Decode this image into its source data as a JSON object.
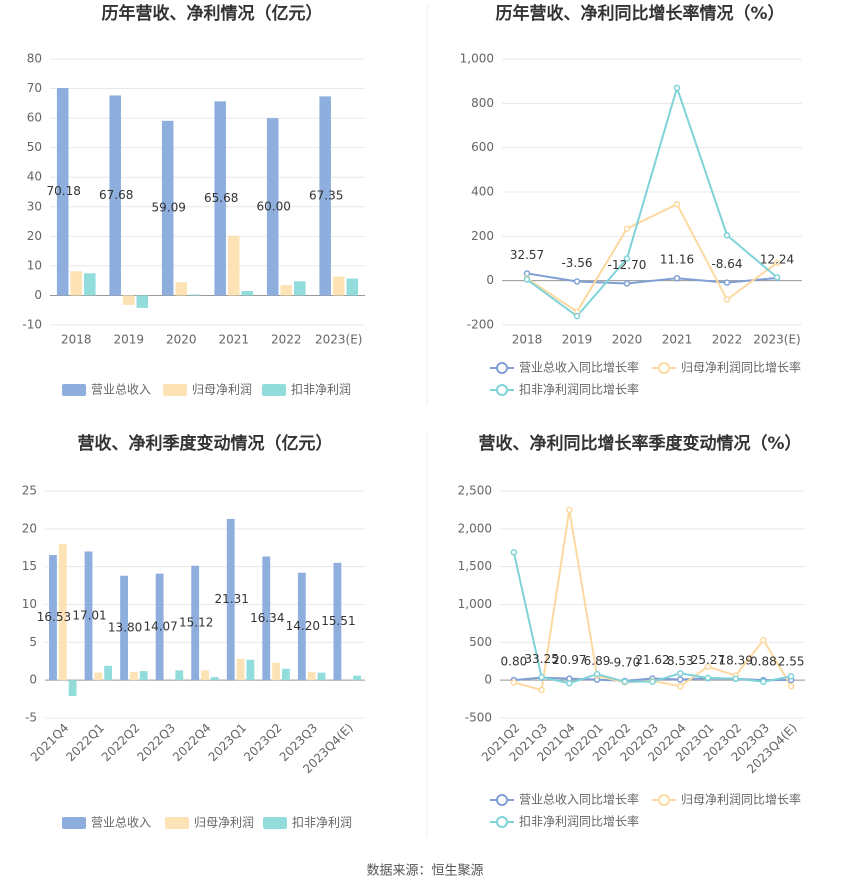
{
  "chart_data": [
    {
      "type": "bar",
      "title": "历年营收、净利情况（亿元）",
      "categories": [
        "2018",
        "2019",
        "2020",
        "2021",
        "2022",
        "2023(E)"
      ],
      "series": [
        {
          "name": "营业总收入",
          "color": "#8eaedd",
          "values": [
            70.18,
            67.68,
            59.09,
            65.68,
            60,
            67.35
          ],
          "value_labels": [
            "70.18",
            "67.68",
            "59.09",
            "65.68",
            "60.00",
            "67.35"
          ]
        },
        {
          "name": "归母净利润",
          "color": "#fde2b5",
          "values": [
            8.2,
            -3.2,
            4.5,
            20.2,
            3.5,
            6.4
          ]
        },
        {
          "name": "扣非净利润",
          "color": "#92dcdc",
          "values": [
            7.5,
            -4.2,
            0.3,
            1.5,
            4.8,
            5.7
          ]
        }
      ],
      "ylim": [
        -10,
        80
      ],
      "yticks": [
        -10,
        0,
        10,
        20,
        30,
        40,
        50,
        60,
        70,
        80
      ],
      "grid": true
    },
    {
      "type": "line",
      "title": "历年营收、净利同比增长率情况（%）",
      "categories": [
        "2018",
        "2019",
        "2020",
        "2021",
        "2022",
        "2023(E)"
      ],
      "series": [
        {
          "name": "营业总收入同比增长率",
          "color": "#7f9fd4",
          "values": [
            32.57,
            -3.56,
            -12.7,
            11.16,
            -8.64,
            12.24
          ],
          "value_labels": [
            "32.57",
            "-3.56",
            "-12.70",
            "11.16",
            "-8.64",
            "12.24"
          ]
        },
        {
          "name": "归母净利润同比增长率",
          "color": "#fcd9a0",
          "values": [
            10,
            -140,
            235,
            345,
            -85,
            80
          ]
        },
        {
          "name": "扣非净利润同比增长率",
          "color": "#7fd3d8",
          "values": [
            5,
            -160,
            100,
            870,
            205,
            15
          ]
        }
      ],
      "ylim": [
        -200,
        1000
      ],
      "yticks": [
        -200,
        0,
        200,
        400,
        600,
        800,
        {
          "value": 1000,
          "label": "1,000"
        }
      ],
      "grid": true
    },
    {
      "type": "bar",
      "title": "营收、净利季度变动情况（亿元）",
      "categories": [
        "2021Q4",
        "2022Q1",
        "2022Q2",
        "2022Q3",
        "2022Q4",
        "2023Q1",
        "2023Q2",
        "2023Q3",
        "2023Q4(E)"
      ],
      "series": [
        {
          "name": "营业总收入",
          "color": "#8eaedd",
          "values": [
            16.53,
            17.01,
            13.8,
            14.07,
            15.12,
            21.31,
            16.34,
            14.2,
            15.51
          ],
          "value_labels": [
            "16.53",
            "17.01",
            "13.80",
            "14.07",
            "15.12",
            "21.31",
            "16.34",
            "14.20",
            "15.51"
          ]
        },
        {
          "name": "归母净利润",
          "color": "#fde2b5",
          "values": [
            18,
            1,
            1.1,
            0,
            1.3,
            2.8,
            2.3,
            1.1,
            0
          ]
        },
        {
          "name": "扣非净利润",
          "color": "#92dcdc",
          "values": [
            -2.1,
            1.9,
            1.2,
            1.3,
            0.4,
            2.7,
            1.5,
            1,
            0.6
          ]
        }
      ],
      "ylim": [
        -5,
        25
      ],
      "yticks": [
        -5,
        0,
        5,
        10,
        15,
        20,
        25
      ],
      "grid": true
    },
    {
      "type": "line",
      "title": "营收、净利同比增长率季度变动情况（%）",
      "categories": [
        "2021Q2",
        "2021Q3",
        "2021Q4",
        "2022Q1",
        "2022Q2",
        "2022Q3",
        "2022Q4",
        "2023Q1",
        "2023Q2",
        "2023Q3",
        "2023Q4(E)"
      ],
      "series": [
        {
          "name": "营业总收入同比增长率",
          "color": "#7f9fd4",
          "values": [
            0.8,
            33.25,
            20.97,
            6.89,
            -9.7,
            21.62,
            8.53,
            25.27,
            18.39,
            0.88,
            2.55
          ],
          "value_labels": [
            "0.80",
            "33.25",
            "20.97",
            "6.89",
            "-9.70",
            "21.62",
            "8.53",
            "25.27",
            "18.39",
            "0.88",
            "2.55"
          ]
        },
        {
          "name": "归母净利润同比增长率",
          "color": "#fcd9a0",
          "values": [
            -30,
            -130,
            2250,
            60,
            -30,
            -10,
            -80,
            180,
            60,
            530,
            -80
          ]
        },
        {
          "name": "扣非净利润同比增长率",
          "color": "#7fd3d8",
          "values": [
            1690,
            40,
            -40,
            80,
            -20,
            -20,
            90,
            30,
            20,
            -20,
            50
          ]
        }
      ],
      "ylim": [
        -500,
        2500
      ],
      "yticks": [
        -500,
        0,
        500,
        {
          "value": 1000,
          "label": "1,000"
        },
        {
          "value": 1500,
          "label": "1,500"
        },
        {
          "value": 2000,
          "label": "2,000"
        },
        {
          "value": 2500,
          "label": "2,500"
        }
      ],
      "grid": true
    }
  ],
  "source": "数据来源：恒生聚源"
}
